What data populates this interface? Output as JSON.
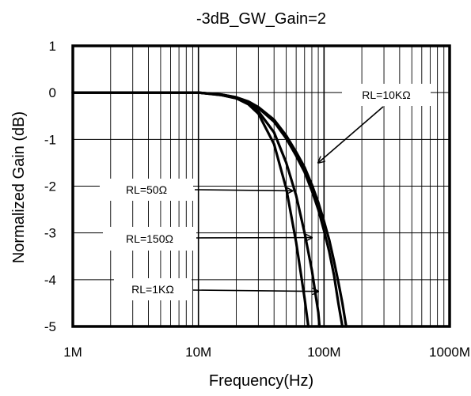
{
  "chart_data": {
    "type": "line",
    "title": "-3dB_GW_Gain=2",
    "xlabel": "Frequency(Hz)",
    "ylabel": "Normalized Gain (dB)",
    "x_scale": "log",
    "xlim": [
      1000000,
      1000000000
    ],
    "ylim": [
      -5,
      1
    ],
    "x_ticks": [
      {
        "value": 1000000,
        "label": "1M"
      },
      {
        "value": 10000000,
        "label": "10M"
      },
      {
        "value": 100000000,
        "label": "100M"
      },
      {
        "value": 1000000000,
        "label": "1000M"
      }
    ],
    "y_ticks": [
      {
        "value": 1,
        "label": "1"
      },
      {
        "value": 0,
        "label": "0"
      },
      {
        "value": -1,
        "label": "-1"
      },
      {
        "value": -2,
        "label": "-2"
      },
      {
        "value": -3,
        "label": "-3"
      },
      {
        "value": -4,
        "label": "-4"
      },
      {
        "value": -5,
        "label": "-5"
      }
    ],
    "grid": true,
    "series": [
      {
        "name": "RL=50Ω",
        "x": [
          1000000,
          10000000,
          15000000,
          20000000,
          25000000,
          30000000,
          40000000,
          50000000,
          60000000,
          70000000,
          75000000
        ],
        "y": [
          0,
          0,
          -0.05,
          -0.12,
          -0.25,
          -0.45,
          -1.1,
          -2.05,
          -3.2,
          -4.4,
          -5
        ]
      },
      {
        "name": "RL=150Ω",
        "x": [
          1000000,
          10000000,
          15000000,
          20000000,
          25000000,
          30000000,
          40000000,
          50000000,
          60000000,
          70000000,
          80000000,
          90000000,
          92000000
        ],
        "y": [
          0,
          0,
          -0.05,
          -0.12,
          -0.22,
          -0.4,
          -0.85,
          -1.5,
          -2.2,
          -3.0,
          -3.8,
          -4.7,
          -5
        ]
      },
      {
        "name": "RL=1KΩ",
        "x": [
          1000000,
          10000000,
          15000000,
          20000000,
          25000000,
          30000000,
          40000000,
          50000000,
          60000000,
          70000000,
          80000000,
          90000000,
          100000000,
          110000000,
          120000000,
          130000000,
          140000000
        ],
        "y": [
          0,
          0,
          -0.04,
          -0.1,
          -0.2,
          -0.33,
          -0.62,
          -0.98,
          -1.35,
          -1.7,
          -2.1,
          -2.5,
          -2.95,
          -3.4,
          -3.9,
          -4.5,
          -5
        ]
      },
      {
        "name": "RL=10KΩ",
        "x": [
          1000000,
          10000000,
          15000000,
          20000000,
          25000000,
          30000000,
          40000000,
          50000000,
          60000000,
          70000000,
          80000000,
          90000000,
          100000000,
          110000000,
          120000000,
          130000000,
          140000000,
          150000000
        ],
        "y": [
          0,
          0,
          -0.04,
          -0.1,
          -0.19,
          -0.31,
          -0.58,
          -0.92,
          -1.27,
          -1.6,
          -1.97,
          -2.35,
          -2.75,
          -3.15,
          -3.6,
          -4.05,
          -4.5,
          -5
        ]
      }
    ],
    "annotations": [
      {
        "text": "RL=10KΩ",
        "arrow_to": {
          "x": 90000000,
          "y": -1.5
        }
      },
      {
        "text": "RL=50Ω",
        "arrow_to": {
          "x": 56000000,
          "y": -2.1
        }
      },
      {
        "text": "RL=150Ω",
        "arrow_to": {
          "x": 80000000,
          "y": -3.1
        }
      },
      {
        "text": "RL=1KΩ",
        "arrow_to": {
          "x": 90000000,
          "y": -4.25
        }
      }
    ]
  }
}
